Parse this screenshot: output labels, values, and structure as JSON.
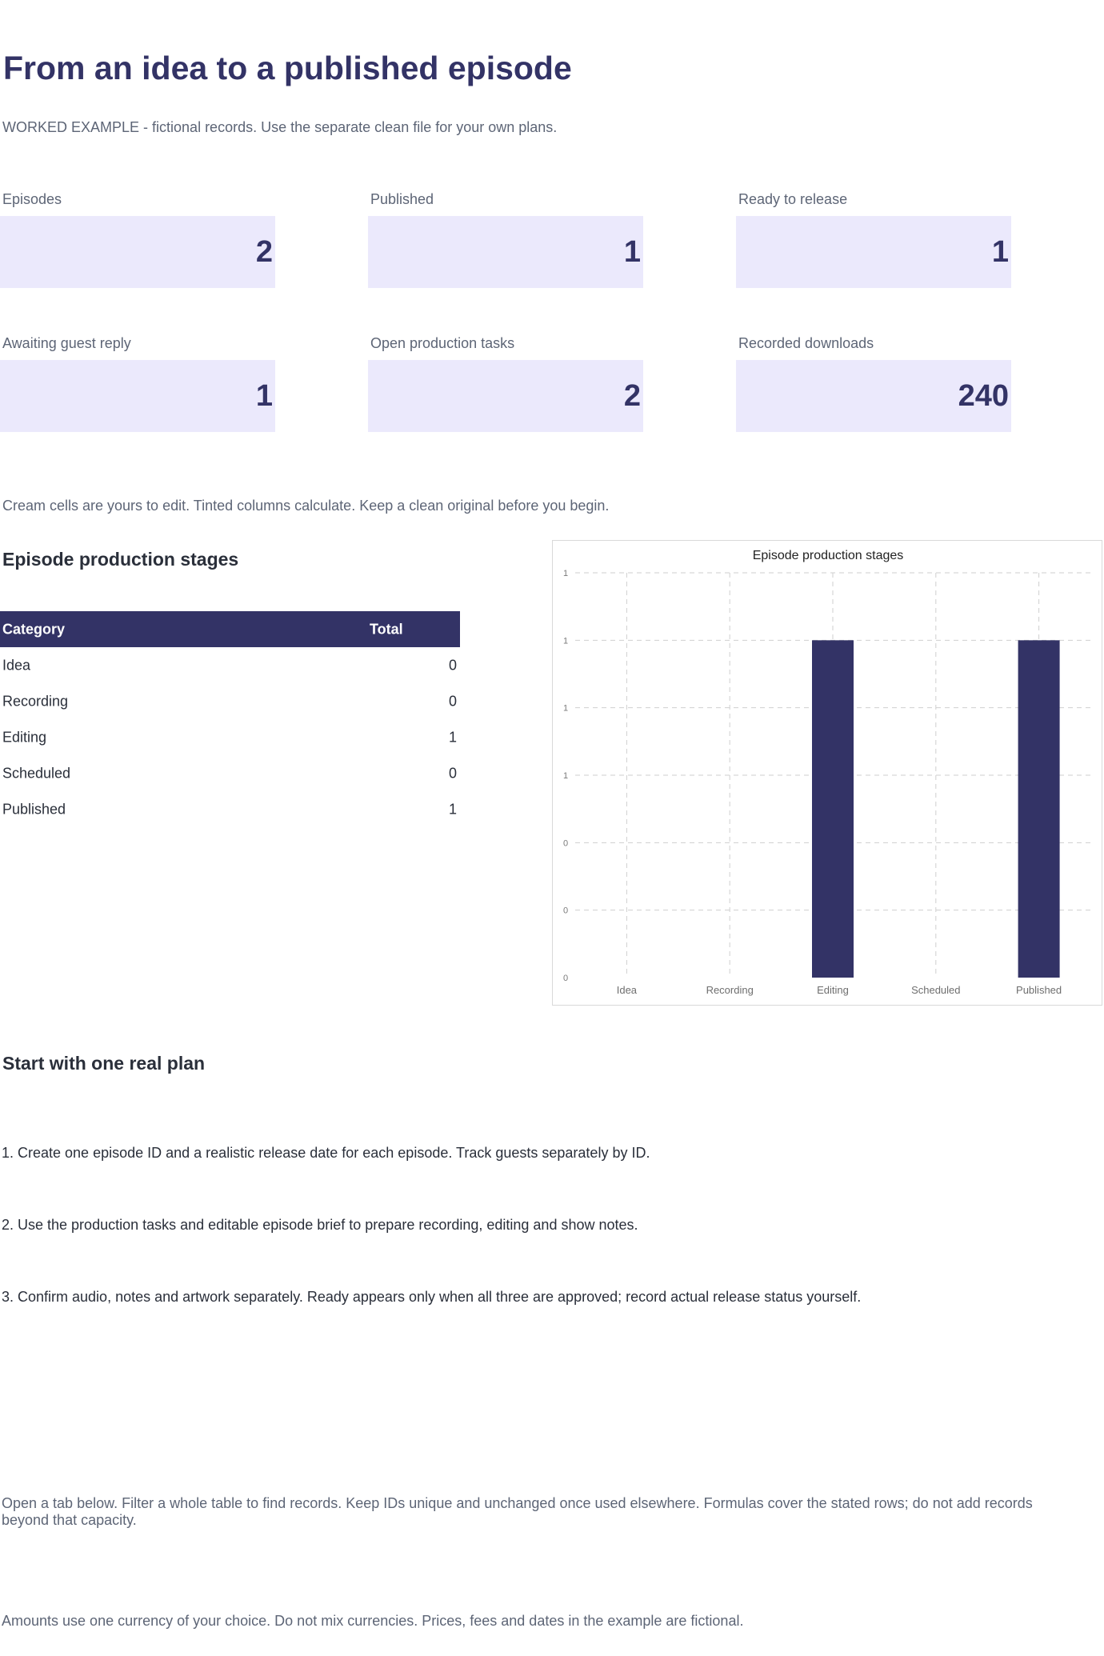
{
  "header": {
    "title": "From an idea to a published episode",
    "subtitle": "WORKED EXAMPLE - fictional records. Use the separate clean file for your own plans."
  },
  "kpis": [
    {
      "label": "Episodes",
      "value": "2"
    },
    {
      "label": "Published",
      "value": "1"
    },
    {
      "label": "Ready to release",
      "value": "1"
    },
    {
      "label": "Awaiting guest reply",
      "value": "1"
    },
    {
      "label": "Open production tasks",
      "value": "2"
    },
    {
      "label": "Recorded downloads",
      "value": "240"
    }
  ],
  "notes": {
    "edit_hint": "Cream cells are yours to edit. Tinted columns calculate. Keep a clean original before you begin."
  },
  "stages": {
    "heading": "Episode production stages",
    "columns": [
      "Category",
      "Total"
    ],
    "rows": [
      {
        "category": "Idea",
        "total": "0"
      },
      {
        "category": "Recording",
        "total": "0"
      },
      {
        "category": "Editing",
        "total": "1"
      },
      {
        "category": "Scheduled",
        "total": "0"
      },
      {
        "category": "Published",
        "total": "1"
      }
    ]
  },
  "chart_data": {
    "type": "bar",
    "title": "Episode production stages",
    "categories": [
      "Idea",
      "Recording",
      "Editing",
      "Scheduled",
      "Published"
    ],
    "values": [
      0,
      0,
      1,
      0,
      1
    ],
    "ylim": [
      0,
      1.2
    ],
    "y_tick_labels": [
      "0",
      "0",
      "0",
      "1",
      "1",
      "1",
      "1"
    ],
    "grid": true,
    "bar_color": "#333366"
  },
  "plan": {
    "heading": "Start with one real plan",
    "steps": [
      "1. Create one episode ID and a realistic release date for each episode. Track guests separately by ID.",
      "2. Use the production tasks and editable episode brief to prepare recording, editing and show notes.",
      "3. Confirm audio, notes and artwork separately. Ready appears only when all three are approved; record actual release status yourself."
    ]
  },
  "footer": {
    "tabs_note": "Open a tab below. Filter a whole table to find records. Keep IDs unique and unchanged once used elsewhere. Formulas cover the stated rows; do not add records beyond that capacity.",
    "currency_note": "Amounts use one currency of your choice. Do not mix currencies. Prices, fees and dates in the example are fictional."
  }
}
